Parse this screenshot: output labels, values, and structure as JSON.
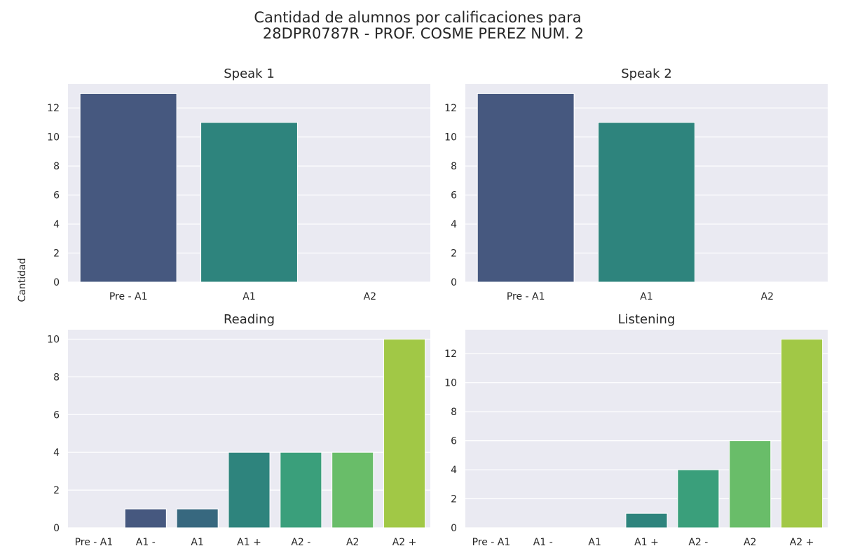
{
  "figure": {
    "title_line1": "Cantidad de alumnos por calificaciones para",
    "title_line2": "28DPR0787R - PROF. COSME PEREZ NUM. 2",
    "ylabel": "Cantidad"
  },
  "colors": {
    "panel_bg": "#eaeaf2",
    "grid": "#ffffff",
    "text": "#262626"
  },
  "chart_data": [
    {
      "type": "bar",
      "title": "Speak 1",
      "categories": [
        "Pre - A1",
        "A1",
        "A2"
      ],
      "values": [
        13,
        11,
        0
      ],
      "colors": [
        "#46587f",
        "#2e847d",
        "#2e847d"
      ],
      "yticks": [
        0,
        2,
        4,
        6,
        8,
        10,
        12
      ],
      "ylim": [
        0,
        13.65
      ],
      "grid": true
    },
    {
      "type": "bar",
      "title": "Speak 2",
      "categories": [
        "Pre - A1",
        "A1",
        "A2"
      ],
      "values": [
        13,
        11,
        0
      ],
      "colors": [
        "#46587f",
        "#2e847d",
        "#2e847d"
      ],
      "yticks": [
        0,
        2,
        4,
        6,
        8,
        10,
        12
      ],
      "ylim": [
        0,
        13.65
      ],
      "grid": true
    },
    {
      "type": "bar",
      "title": "Reading",
      "categories": [
        "Pre - A1",
        "A1 -",
        "A1",
        "A1 +",
        "A2 -",
        "A2",
        "A2 +"
      ],
      "values": [
        0,
        1,
        1,
        4,
        4,
        4,
        10
      ],
      "colors": [
        "#46587f",
        "#46587f",
        "#37687f",
        "#2e847d",
        "#3a9f7b",
        "#69bd69",
        "#a1c846"
      ],
      "yticks": [
        0,
        2,
        4,
        6,
        8,
        10
      ],
      "ylim": [
        0,
        10.5
      ],
      "grid": true
    },
    {
      "type": "bar",
      "title": "Listening",
      "categories": [
        "Pre - A1",
        "A1 -",
        "A1",
        "A1 +",
        "A2 -",
        "A2",
        "A2 +"
      ],
      "values": [
        0,
        0,
        0,
        1,
        4,
        6,
        13
      ],
      "colors": [
        "#46587f",
        "#46587f",
        "#37687f",
        "#2e847d",
        "#3a9f7b",
        "#69bd69",
        "#a1c846"
      ],
      "yticks": [
        0,
        2,
        4,
        6,
        8,
        10,
        12
      ],
      "ylim": [
        0,
        13.65
      ],
      "grid": true
    }
  ]
}
